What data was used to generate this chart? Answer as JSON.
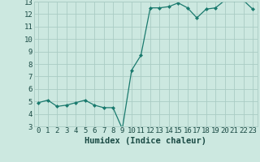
{
  "x": [
    0,
    1,
    2,
    3,
    4,
    5,
    6,
    7,
    8,
    9,
    10,
    11,
    12,
    13,
    14,
    15,
    16,
    17,
    18,
    19,
    20,
    21,
    22,
    23
  ],
  "y": [
    4.9,
    5.1,
    4.6,
    4.7,
    4.9,
    5.1,
    4.7,
    4.5,
    4.5,
    2.8,
    7.5,
    8.7,
    12.5,
    12.5,
    12.6,
    12.9,
    12.5,
    11.7,
    12.4,
    12.5,
    13.1,
    13.1,
    13.1,
    12.4
  ],
  "xlabel": "Humidex (Indice chaleur)",
  "ylim": [
    3,
    13
  ],
  "xlim": [
    -0.5,
    23.5
  ],
  "yticks": [
    3,
    4,
    5,
    6,
    7,
    8,
    9,
    10,
    11,
    12,
    13
  ],
  "xticks": [
    0,
    1,
    2,
    3,
    4,
    5,
    6,
    7,
    8,
    9,
    10,
    11,
    12,
    13,
    14,
    15,
    16,
    17,
    18,
    19,
    20,
    21,
    22,
    23
  ],
  "line_color": "#1a7a6e",
  "marker_color": "#1a7a6e",
  "bg_color": "#cce8e0",
  "grid_color": "#aaccC4",
  "text_color": "#1a4a44",
  "xlabel_fontsize": 7.5,
  "tick_fontsize": 6.5
}
